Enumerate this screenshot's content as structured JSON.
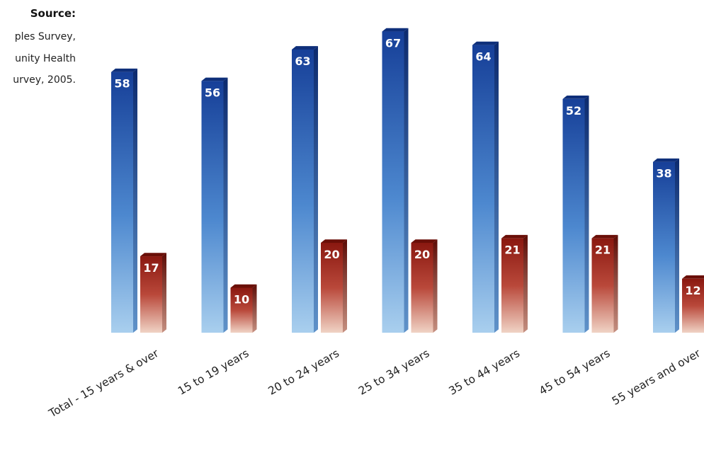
{
  "source": {
    "title": "Source:",
    "lines": [
      "ples Survey,",
      "unity Health",
      "urvey, 2005."
    ]
  },
  "chart_data": {
    "type": "bar",
    "categories": [
      "Total - 15 years & over",
      "15 to 19 years",
      "20 to 24 years",
      "25 to 34 years",
      "35 to 44 years",
      "45 to 54 years",
      "55 years and over"
    ],
    "series": [
      {
        "values": [
          58,
          56,
          63,
          67,
          64,
          52,
          38
        ],
        "color": "#1f4fa3"
      },
      {
        "values": [
          17,
          10,
          20,
          20,
          21,
          21,
          12
        ],
        "color": "#8e1c14"
      }
    ],
    "ylim": [
      0,
      70
    ],
    "grid": false,
    "legend": "none"
  }
}
